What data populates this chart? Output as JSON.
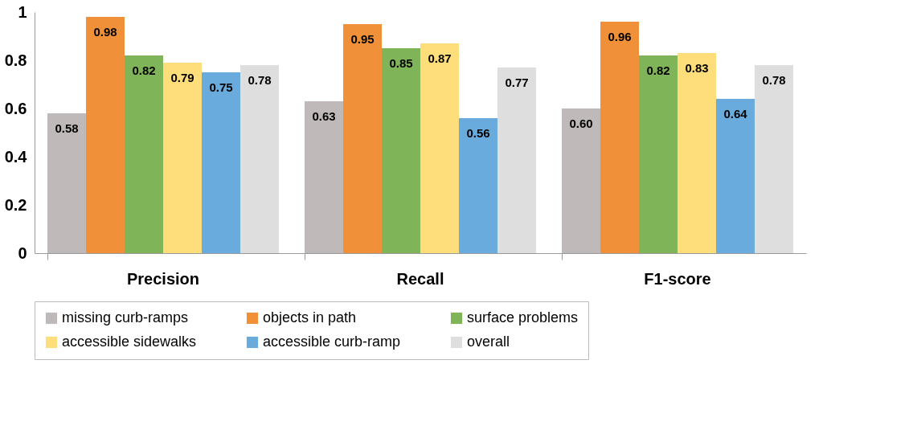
{
  "chart_data": {
    "type": "bar",
    "categories": [
      "Precision",
      "Recall",
      "F1-score"
    ],
    "series": [
      {
        "name": "missing curb-ramps",
        "color": "#bfb9b9",
        "values": [
          0.58,
          0.63,
          0.6
        ],
        "value_labels": [
          "0.58",
          "0.63",
          "0.60"
        ]
      },
      {
        "name": "objects in path",
        "color": "#f0913a",
        "values": [
          0.98,
          0.95,
          0.96
        ],
        "value_labels": [
          "0.98",
          "0.95",
          "0.96"
        ]
      },
      {
        "name": "surface problems",
        "color": "#80b458",
        "values": [
          0.82,
          0.85,
          0.82
        ],
        "value_labels": [
          "0.82",
          "0.85",
          "0.82"
        ]
      },
      {
        "name": "accessible sidewalks",
        "color": "#fedd7b",
        "values": [
          0.79,
          0.87,
          0.83
        ],
        "value_labels": [
          "0.79",
          "0.87",
          "0.83"
        ]
      },
      {
        "name": "accessible curb-ramp",
        "color": "#69abdc",
        "values": [
          0.75,
          0.56,
          0.64
        ],
        "value_labels": [
          "0.75",
          "0.56",
          "0.64"
        ]
      },
      {
        "name": "overall",
        "color": "#dedede",
        "values": [
          0.78,
          0.77,
          0.78
        ],
        "value_labels": [
          "0.78",
          "0.77",
          "0.78"
        ]
      }
    ],
    "ylim": [
      0,
      1
    ],
    "yticks": [
      0,
      0.2,
      0.4,
      0.6,
      0.8,
      1
    ],
    "grid": false,
    "legend": "bottom"
  }
}
